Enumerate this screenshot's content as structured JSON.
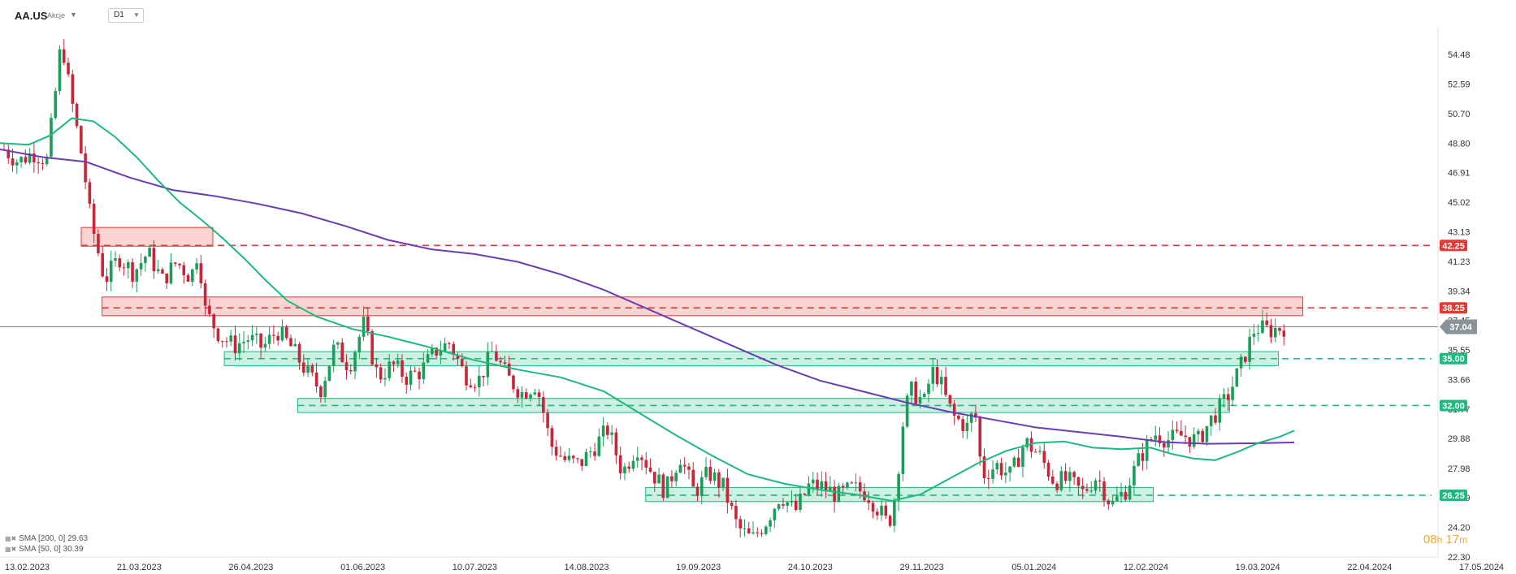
{
  "header": {
    "symbol": "AA.US",
    "instrument_type": "Akcje",
    "timeframe": "D1"
  },
  "legend": {
    "sma200": "SMA [200, 0] 29.63",
    "sma50": "SMA [50, 0] 30.39"
  },
  "timer": {
    "hours": "08",
    "h_unit": "h",
    "minutes": "17",
    "m_unit": "m"
  },
  "colors": {
    "bull": "#1b9e5a",
    "bear": "#c8253a",
    "sma50": "#1db97f",
    "sma200": "#6a3cb5",
    "resistance": "#e53935",
    "support": "#1db97f",
    "price_tag": "#8a9399"
  },
  "chart_data": {
    "type": "candlestick",
    "y_axis_ticks": [
      54.48,
      52.59,
      50.7,
      48.8,
      46.91,
      45.02,
      43.13,
      41.23,
      39.34,
      37.45,
      35.55,
      33.66,
      31.77,
      29.88,
      27.98,
      26.09,
      24.2,
      22.3
    ],
    "y_axis_labels": [
      "54.48",
      "52.59",
      "50.70",
      "48.80",
      "46.91",
      "45.02",
      "43.13",
      "41.23",
      "39.34",
      "37.45",
      "35.55",
      "33.66",
      "31.77",
      "29.88",
      "27.98",
      "26.09",
      "24.20",
      "22.30"
    ],
    "ylim": [
      22.3,
      56.2
    ],
    "x_axis_labels": [
      "13.02.2023",
      "21.03.2023",
      "26.04.2023",
      "01.06.2023",
      "10.07.2023",
      "14.08.2023",
      "19.09.2023",
      "24.10.2023",
      "29.11.2023",
      "05.01.2024",
      "12.02.2024",
      "19.03.2024",
      "22.04.2024",
      "17.05.2024"
    ],
    "current_price": {
      "value": 37.04,
      "label": "37.04"
    },
    "levels": [
      {
        "value": 42.25,
        "label": "42.25",
        "kind": "resistance"
      },
      {
        "value": 38.25,
        "label": "38.25",
        "kind": "resistance"
      },
      {
        "value": 35.0,
        "label": "35.00",
        "kind": "support"
      },
      {
        "value": 32.0,
        "label": "32.00",
        "kind": "support"
      },
      {
        "value": 26.25,
        "label": "26.25",
        "kind": "support"
      }
    ],
    "zones": [
      {
        "kind": "resistance",
        "from": 0.0565,
        "to": 0.148,
        "low": 42.2,
        "high": 43.4
      },
      {
        "kind": "resistance",
        "from": 0.071,
        "to": 0.906,
        "low": 37.75,
        "high": 38.95
      },
      {
        "kind": "support",
        "from": 0.156,
        "to": 0.889,
        "low": 34.55,
        "high": 35.45
      },
      {
        "kind": "support",
        "from": 0.207,
        "to": 0.855,
        "low": 31.55,
        "high": 32.45
      },
      {
        "kind": "support",
        "from": 0.449,
        "to": 0.802,
        "low": 25.85,
        "high": 26.75
      }
    ],
    "sma50_path": [
      [
        0,
        48.8
      ],
      [
        0.02,
        48.7
      ],
      [
        0.035,
        49.3
      ],
      [
        0.05,
        50.4
      ],
      [
        0.065,
        50.2
      ],
      [
        0.08,
        49.2
      ],
      [
        0.095,
        47.9
      ],
      [
        0.11,
        46.4
      ],
      [
        0.125,
        45.0
      ],
      [
        0.14,
        43.9
      ],
      [
        0.155,
        42.7
      ],
      [
        0.17,
        41.4
      ],
      [
        0.185,
        40.0
      ],
      [
        0.2,
        38.7
      ],
      [
        0.22,
        37.7
      ],
      [
        0.245,
        36.9
      ],
      [
        0.27,
        36.4
      ],
      [
        0.3,
        35.7
      ],
      [
        0.33,
        34.9
      ],
      [
        0.36,
        34.3
      ],
      [
        0.39,
        33.8
      ],
      [
        0.42,
        32.9
      ],
      [
        0.445,
        31.5
      ],
      [
        0.47,
        30.1
      ],
      [
        0.495,
        28.8
      ],
      [
        0.52,
        27.6
      ],
      [
        0.545,
        27.0
      ],
      [
        0.57,
        26.6
      ],
      [
        0.595,
        26.3
      ],
      [
        0.62,
        25.9
      ],
      [
        0.64,
        26.3
      ],
      [
        0.66,
        27.3
      ],
      [
        0.68,
        28.3
      ],
      [
        0.7,
        29.1
      ],
      [
        0.72,
        29.6
      ],
      [
        0.74,
        29.7
      ],
      [
        0.76,
        29.3
      ],
      [
        0.78,
        29.2
      ],
      [
        0.8,
        29.3
      ],
      [
        0.815,
        28.9
      ],
      [
        0.83,
        28.6
      ],
      [
        0.845,
        28.5
      ],
      [
        0.86,
        29.0
      ],
      [
        0.875,
        29.6
      ],
      [
        0.89,
        30.0
      ],
      [
        0.9,
        30.39
      ]
    ],
    "sma200_path": [
      [
        0,
        48.4
      ],
      [
        0.03,
        47.9
      ],
      [
        0.06,
        47.6
      ],
      [
        0.09,
        46.6
      ],
      [
        0.12,
        45.8
      ],
      [
        0.15,
        45.4
      ],
      [
        0.18,
        44.9
      ],
      [
        0.21,
        44.3
      ],
      [
        0.24,
        43.5
      ],
      [
        0.27,
        42.6
      ],
      [
        0.3,
        42.0
      ],
      [
        0.33,
        41.7
      ],
      [
        0.36,
        41.2
      ],
      [
        0.39,
        40.4
      ],
      [
        0.42,
        39.4
      ],
      [
        0.45,
        38.2
      ],
      [
        0.48,
        37.0
      ],
      [
        0.51,
        35.8
      ],
      [
        0.54,
        34.6
      ],
      [
        0.57,
        33.6
      ],
      [
        0.6,
        32.9
      ],
      [
        0.63,
        32.2
      ],
      [
        0.66,
        31.6
      ],
      [
        0.69,
        31.1
      ],
      [
        0.72,
        30.6
      ],
      [
        0.75,
        30.3
      ],
      [
        0.78,
        30.0
      ],
      [
        0.81,
        29.65
      ],
      [
        0.84,
        29.55
      ],
      [
        0.87,
        29.58
      ],
      [
        0.9,
        29.63
      ]
    ],
    "price_path": [
      [
        0,
        48.4
      ],
      [
        0.01,
        47.6
      ],
      [
        0.02,
        48.2
      ],
      [
        0.03,
        47.7
      ],
      [
        0.035,
        51.5
      ],
      [
        0.04,
        55.5
      ],
      [
        0.045,
        52.5
      ],
      [
        0.05,
        50.0
      ],
      [
        0.055,
        47.5
      ],
      [
        0.06,
        44.0
      ],
      [
        0.065,
        42.0
      ],
      [
        0.07,
        40.0
      ],
      [
        0.08,
        41.5
      ],
      [
        0.09,
        40.5
      ],
      [
        0.1,
        41.8
      ],
      [
        0.11,
        40.0
      ],
      [
        0.12,
        41.2
      ],
      [
        0.13,
        40.2
      ],
      [
        0.135,
        42.0
      ],
      [
        0.14,
        38.0
      ],
      [
        0.15,
        36.5
      ],
      [
        0.16,
        35.8
      ],
      [
        0.17,
        36.3
      ],
      [
        0.18,
        35.7
      ],
      [
        0.19,
        36.8
      ],
      [
        0.2,
        35.7
      ],
      [
        0.21,
        34.2
      ],
      [
        0.22,
        33.0
      ],
      [
        0.23,
        35.8
      ],
      [
        0.24,
        34.5
      ],
      [
        0.25,
        37.2
      ],
      [
        0.26,
        33.8
      ],
      [
        0.27,
        34.6
      ],
      [
        0.28,
        33.8
      ],
      [
        0.29,
        34.2
      ],
      [
        0.3,
        35.5
      ],
      [
        0.31,
        36.0
      ],
      [
        0.32,
        34.0
      ],
      [
        0.33,
        33.6
      ],
      [
        0.34,
        35.5
      ],
      [
        0.35,
        33.8
      ],
      [
        0.36,
        32.8
      ],
      [
        0.37,
        33.4
      ],
      [
        0.375,
        31.6
      ],
      [
        0.38,
        29.5
      ],
      [
        0.39,
        28.5
      ],
      [
        0.4,
        28.2
      ],
      [
        0.41,
        29.3
      ],
      [
        0.42,
        30.5
      ],
      [
        0.43,
        27.7
      ],
      [
        0.44,
        29.4
      ],
      [
        0.45,
        27.8
      ],
      [
        0.46,
        26.5
      ],
      [
        0.47,
        28.8
      ],
      [
        0.48,
        26.4
      ],
      [
        0.49,
        27.7
      ],
      [
        0.5,
        26.8
      ],
      [
        0.51,
        24.2
      ],
      [
        0.52,
        23.4
      ],
      [
        0.53,
        24.6
      ],
      [
        0.54,
        26.3
      ],
      [
        0.55,
        25.2
      ],
      [
        0.56,
        26.9
      ],
      [
        0.57,
        26.8
      ],
      [
        0.58,
        26.2
      ],
      [
        0.59,
        26.7
      ],
      [
        0.6,
        26.4
      ],
      [
        0.61,
        25.1
      ],
      [
        0.615,
        24.3
      ],
      [
        0.62,
        26.4
      ],
      [
        0.625,
        30.8
      ],
      [
        0.63,
        33.0
      ],
      [
        0.64,
        32.2
      ],
      [
        0.645,
        34.2
      ],
      [
        0.65,
        33.8
      ],
      [
        0.655,
        32.4
      ],
      [
        0.66,
        31.3
      ],
      [
        0.67,
        30.6
      ],
      [
        0.675,
        31.8
      ],
      [
        0.68,
        27.5
      ],
      [
        0.69,
        28.2
      ],
      [
        0.7,
        27.5
      ],
      [
        0.71,
        29.7
      ],
      [
        0.72,
        28.8
      ],
      [
        0.73,
        27.2
      ],
      [
        0.74,
        27.2
      ],
      [
        0.75,
        26.4
      ],
      [
        0.76,
        27.5
      ],
      [
        0.77,
        25.6
      ],
      [
        0.78,
        26.6
      ],
      [
        0.79,
        28.7
      ],
      [
        0.8,
        30.2
      ],
      [
        0.81,
        29.8
      ],
      [
        0.82,
        30.1
      ],
      [
        0.83,
        29.7
      ],
      [
        0.84,
        31.2
      ],
      [
        0.85,
        32.4
      ],
      [
        0.86,
        34.5
      ],
      [
        0.87,
        37.0
      ],
      [
        0.88,
        36.8
      ],
      [
        0.89,
        37.04
      ]
    ]
  }
}
